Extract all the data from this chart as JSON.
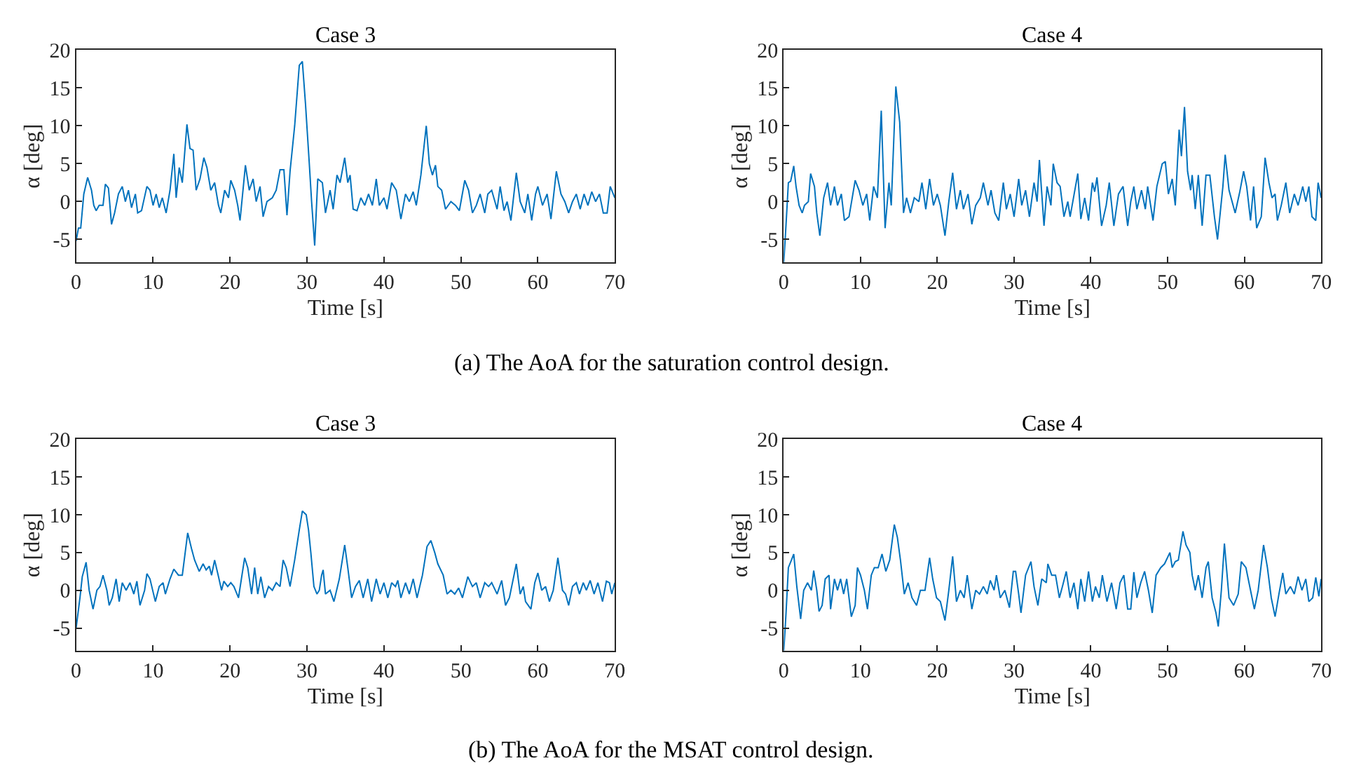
{
  "chart_data": [
    {
      "type": "line",
      "title": "Case 3",
      "xlabel": "Time [s]",
      "ylabel": "α [deg]",
      "xlim": [
        0,
        70
      ],
      "xticks": [
        0,
        10,
        20,
        30,
        40,
        50,
        60,
        70
      ],
      "ylim": [
        -8,
        20
      ],
      "yticks": [
        -5,
        0,
        5,
        10,
        15,
        20
      ],
      "annotations": [
        "(a) The AoA for the saturation control design."
      ],
      "series": [
        {
          "color": "#0072bd",
          "x": [
            0,
            0.3,
            0.6,
            1,
            1.5,
            2,
            2.3,
            2.6,
            3,
            3.5,
            3.8,
            4.2,
            4.6,
            5,
            5.5,
            6,
            6.4,
            6.8,
            7.2,
            7.7,
            8,
            8.5,
            9.2,
            9.6,
            10,
            10.4,
            10.8,
            11.2,
            11.7,
            12.2,
            12.7,
            13,
            13.4,
            13.8,
            14.4,
            14.8,
            15.2,
            15.6,
            16.1,
            16.6,
            17,
            17.5,
            18,
            18.5,
            18.8,
            19.3,
            19.8,
            20.1,
            20.6,
            21,
            21.3,
            22,
            22.5,
            23,
            23.4,
            23.9,
            24.3,
            24.8,
            25.5,
            26,
            26.5,
            27,
            27.4,
            27.8,
            28.4,
            29,
            29.4,
            29.8,
            30.3,
            30.6,
            31,
            31.4,
            32,
            32.4,
            33,
            33.4,
            33.9,
            34.3,
            34.9,
            35.3,
            35.6,
            36,
            36.5,
            37,
            37.5,
            38,
            38.5,
            38.8,
            39,
            39.4,
            40,
            40.4,
            41,
            41.6,
            42.2,
            42.8,
            43.3,
            43.8,
            44.2,
            44.8,
            45.5,
            45.9,
            46.3,
            46.7,
            47,
            47.5,
            48,
            48.7,
            49.3,
            49.8,
            50.5,
            51,
            51.5,
            52,
            52.5,
            53.1,
            53.5,
            54,
            54.7,
            55.1,
            55.6,
            56,
            56.5,
            57.2,
            57.7,
            58.3,
            58.7,
            59.2,
            59.7,
            60,
            60.6,
            61.2,
            61.7,
            62.4,
            63,
            63.5,
            64,
            64.5,
            65,
            65.5,
            66,
            66.5,
            67,
            67.5,
            68,
            68.5,
            69,
            69.4,
            70
          ],
          "values": [
            -5.2,
            -3.5,
            -3.5,
            1,
            3.2,
            1.5,
            -0.5,
            -1.2,
            -0.5,
            -0.5,
            2.3,
            1.8,
            -3,
            -1.5,
            1,
            2,
            0,
            1.5,
            -0.8,
            1,
            -1.5,
            -1.2,
            2,
            1.5,
            -0.5,
            1,
            -0.8,
            0.5,
            -1.5,
            1.5,
            6.3,
            0.5,
            4.5,
            2.5,
            10.2,
            7,
            6.8,
            1.5,
            3,
            5.8,
            4.5,
            1.5,
            2.5,
            -0.5,
            -1.5,
            1.5,
            0.5,
            2.8,
            1.5,
            -0.5,
            -2.5,
            4.8,
            1.5,
            3,
            0,
            2,
            -2,
            0,
            0.5,
            1.5,
            4.2,
            4.2,
            -1.8,
            4,
            10,
            18,
            18.5,
            13,
            5,
            0,
            -5.8,
            3,
            2.5,
            -1.5,
            1.5,
            -1,
            3.5,
            2.5,
            5.8,
            2.5,
            3.5,
            -1,
            -1.2,
            0.5,
            -0.5,
            1,
            -0.5,
            1.5,
            3,
            -0.5,
            0.5,
            -1,
            2.5,
            1.5,
            -2.3,
            1,
            0,
            1.3,
            -0.5,
            3.5,
            10,
            5,
            3.5,
            4.8,
            2,
            1.5,
            -1,
            0,
            -0.5,
            -1.2,
            2.8,
            1.5,
            -1.5,
            -0.5,
            1,
            -1.5,
            1,
            1.5,
            -1,
            2,
            -1.2,
            0,
            -2.5,
            3.8,
            0,
            -1.5,
            1,
            -2.5,
            1,
            2,
            -0.5,
            1,
            -2.3,
            4,
            1,
            0,
            -1.5,
            0,
            1,
            -1,
            1,
            -0.5,
            1.3,
            0,
            1,
            -1.5,
            -1.5,
            2,
            0.5
          ]
        }
      ]
    },
    {
      "type": "line",
      "title": "Case 4",
      "xlabel": "Time [s]",
      "ylabel": "α [deg]",
      "xlim": [
        0,
        70
      ],
      "xticks": [
        0,
        10,
        20,
        30,
        40,
        50,
        60,
        70
      ],
      "ylim": [
        -8,
        20
      ],
      "yticks": [
        -5,
        0,
        5,
        10,
        15,
        20
      ],
      "series": [
        {
          "color": "#0072bd",
          "x": [
            0,
            0.3,
            0.6,
            0.9,
            1.3,
            1.6,
            2,
            2.4,
            2.7,
            3.2,
            3.5,
            4,
            4.3,
            4.7,
            5.2,
            5.7,
            6.1,
            6.6,
            7,
            7.5,
            7.9,
            8.5,
            9.3,
            9.8,
            10.3,
            10.8,
            11.2,
            11.7,
            12.2,
            12.7,
            13.2,
            13.7,
            14,
            14.6,
            15.1,
            15.6,
            16,
            16.5,
            17,
            17.6,
            18,
            18.5,
            19,
            19.5,
            20,
            20.4,
            21,
            21.5,
            22,
            22.5,
            23,
            23.4,
            24,
            24.5,
            25,
            25.6,
            26,
            26.6,
            27,
            27.5,
            28,
            28.6,
            29,
            29.5,
            30,
            30.6,
            31,
            31.5,
            32,
            32.6,
            33,
            33.3,
            33.9,
            34.3,
            34.8,
            35.1,
            35.6,
            36,
            36.5,
            37,
            37.3,
            38.3,
            38.7,
            39.2,
            39.7,
            40.2,
            40.5,
            40.8,
            41.4,
            42,
            42.4,
            43,
            43.6,
            44.2,
            44.8,
            45.2,
            45.6,
            46,
            46.6,
            47.1,
            47.4,
            48.1,
            48.6,
            49.3,
            49.7,
            50.1,
            50.6,
            51,
            51.5,
            51.8,
            52.2,
            52.6,
            53,
            53.2,
            53.6,
            54,
            54.5,
            55,
            55.5,
            56.1,
            56.5,
            57.2,
            57.5,
            58,
            58.4,
            58.8,
            59.4,
            59.9,
            60.3,
            60.8,
            61.2,
            61.6,
            62.2,
            62.7,
            63.2,
            63.6,
            64,
            64.3,
            64.8,
            65.4,
            65.9,
            66.5,
            67,
            67.6,
            68,
            68.4,
            68.8,
            69.3,
            69.6,
            70
          ],
          "values": [
            -8,
            -3,
            2.5,
            2.7,
            4.7,
            2,
            -0.5,
            -1.5,
            -0.5,
            0,
            3.7,
            2,
            -1.5,
            -4.5,
            0.5,
            2.5,
            -0.5,
            2,
            -0.5,
            1,
            -2.5,
            -2,
            2.8,
            1.5,
            -0.5,
            1,
            -2.5,
            2,
            0.5,
            12,
            -3.5,
            2.5,
            -0.5,
            15.2,
            10.5,
            -1.5,
            0.5,
            -1.5,
            0.5,
            0,
            2.5,
            -1,
            3,
            -0.5,
            1,
            -0.5,
            -4.5,
            0,
            3.8,
            -1,
            1.5,
            -1,
            1,
            -3,
            -0.5,
            0.5,
            2.5,
            -0.5,
            1.5,
            -1.5,
            -2.5,
            2.5,
            -1,
            1,
            -2,
            3,
            -0.5,
            1.5,
            -2,
            2.5,
            0,
            5.5,
            -3.2,
            2,
            -0.5,
            5,
            2.5,
            2,
            -2,
            0,
            -2,
            3.7,
            -2.3,
            0.5,
            -2.5,
            2.5,
            1.3,
            3.2,
            -3.2,
            -0.5,
            2.5,
            -3.2,
            1,
            2,
            -3.2,
            0,
            2,
            -1,
            1.5,
            -1,
            2,
            -2.5,
            2,
            5,
            5.3,
            1,
            3,
            -0.5,
            9.5,
            6,
            12.5,
            4,
            1.5,
            3.5,
            -1,
            3.5,
            -3.2,
            3.5,
            3.5,
            -2,
            -5,
            2,
            6.2,
            1.5,
            0,
            -1.5,
            1.3,
            4,
            2,
            -2.5,
            2,
            -3.5,
            -2,
            5.8,
            2.5,
            0.5,
            1,
            -2.5,
            -0.5,
            2.5,
            -1.5,
            1,
            -0.5,
            2,
            0,
            2,
            -2,
            -2.5,
            2.5,
            0.5
          ]
        }
      ]
    },
    {
      "type": "line",
      "title": "Case 3",
      "xlabel": "Time [s]",
      "ylabel": "α [deg]",
      "xlim": [
        0,
        70
      ],
      "xticks": [
        0,
        10,
        20,
        30,
        40,
        50,
        60,
        70
      ],
      "ylim": [
        -8,
        20
      ],
      "yticks": [
        -5,
        0,
        5,
        10,
        15,
        20
      ],
      "annotations": [
        "(b) The AoA for the MSAT control design."
      ],
      "series": [
        {
          "color": "#0072bd",
          "x": [
            0,
            0.5,
            0.8,
            1.3,
            1.7,
            2.2,
            2.7,
            3.1,
            3.5,
            4,
            4.3,
            4.7,
            5.2,
            5.6,
            6,
            6.5,
            7,
            7.5,
            7.9,
            8.3,
            8.9,
            9.2,
            9.6,
            10.3,
            10.8,
            11.3,
            11.6,
            12.2,
            12.7,
            13.3,
            13.8,
            14.5,
            15,
            15.4,
            16,
            16.5,
            16.9,
            17.3,
            17.6,
            18,
            18.5,
            18.9,
            19.2,
            19.7,
            20.1,
            20.5,
            21.1,
            21.9,
            22.3,
            22.8,
            23.2,
            23.6,
            24,
            24.5,
            25,
            25.5,
            26,
            26.5,
            26.9,
            27.3,
            27.8,
            28.4,
            29,
            29.4,
            29.9,
            30.2,
            30.5,
            30.9,
            31.3,
            31.6,
            31.9,
            32.1,
            32.4,
            33,
            33.5,
            34.2,
            34.9,
            35.3,
            35.8,
            36.3,
            36.8,
            37.3,
            37.9,
            38.4,
            39,
            39.5,
            40,
            40.5,
            41,
            41.5,
            41.8,
            42.2,
            42.8,
            43.3,
            43.8,
            44.3,
            45,
            45.6,
            46.1,
            46.6,
            47,
            47.7,
            48.2,
            48.7,
            49.2,
            49.7,
            50.2,
            50.9,
            51.5,
            52,
            52.5,
            53.1,
            53.6,
            54,
            54.7,
            55.3,
            55.8,
            56.3,
            57.2,
            57.7,
            58.1,
            58.4,
            59.1,
            59.6,
            60,
            60.5,
            61,
            61.5,
            62,
            62.6,
            63.2,
            63.6,
            64,
            64.5,
            65,
            65.4,
            65.9,
            66.3,
            66.8,
            67.3,
            67.8,
            68.4,
            68.9,
            69.3,
            69.6,
            70
          ],
          "values": [
            -5,
            -1,
            1.8,
            3.7,
            0,
            -2.5,
            0,
            0.5,
            2,
            0,
            -2,
            -1,
            1.5,
            -1.5,
            1,
            0,
            1,
            -0.5,
            1.2,
            -2,
            0,
            2.2,
            1.5,
            -1.5,
            0.5,
            1,
            -0.5,
            1.5,
            2.8,
            2,
            2,
            7.6,
            5.5,
            4,
            2.5,
            3.5,
            2.7,
            3.2,
            2,
            4,
            1.8,
            0,
            1.2,
            0.5,
            1,
            0.5,
            -1,
            4.3,
            3,
            -0.5,
            3,
            -0.5,
            1.8,
            -1,
            0.5,
            0,
            1,
            0.5,
            4,
            3,
            0.5,
            4,
            8,
            10.5,
            10,
            8,
            5,
            0.5,
            -0.5,
            0,
            2,
            2.7,
            -0.5,
            0,
            -1.5,
            1.5,
            6,
            3,
            -1,
            0.5,
            1.3,
            -1,
            1.5,
            -1.5,
            1.5,
            -0.5,
            1,
            -1,
            1,
            0.5,
            1.3,
            -1,
            1,
            -0.5,
            1.5,
            -1,
            2,
            5.8,
            6.6,
            5,
            3.5,
            2,
            -0.5,
            0,
            -0.5,
            0.3,
            -1,
            1.8,
            0.5,
            1,
            -1,
            1,
            0.5,
            1,
            -0.5,
            1.3,
            -2,
            -1,
            3.5,
            -0.5,
            0.5,
            -1.5,
            -2.5,
            1,
            2.3,
            0,
            0.5,
            -1.5,
            0,
            4.3,
            0,
            -0.5,
            -2,
            0.5,
            1,
            -0.5,
            1,
            0,
            1.3,
            -0.5,
            1,
            -1.5,
            1.2,
            1,
            -0.5,
            1
          ]
        }
      ]
    },
    {
      "type": "line",
      "title": "Case 4",
      "xlabel": "Time [s]",
      "ylabel": "α [deg]",
      "xlim": [
        0,
        70
      ],
      "xticks": [
        0,
        10,
        20,
        30,
        40,
        50,
        60,
        70
      ],
      "ylim": [
        -8,
        20
      ],
      "yticks": [
        -5,
        0,
        5,
        10,
        15,
        20
      ],
      "series": [
        {
          "color": "#0072bd",
          "x": [
            0,
            0.3,
            0.6,
            1,
            1.3,
            1.7,
            2.2,
            2.6,
            3.1,
            3.6,
            3.9,
            4.3,
            4.6,
            5,
            5.4,
            5.9,
            6.1,
            6.6,
            7,
            7.4,
            7.8,
            8.2,
            8.8,
            9.3,
            9.6,
            10,
            10.5,
            10.9,
            11.4,
            11.8,
            12.3,
            12.8,
            13.3,
            13.8,
            14.4,
            14.8,
            15.2,
            15.7,
            16.2,
            16.7,
            17.3,
            17.8,
            18.4,
            19,
            19.4,
            19.9,
            20.4,
            21,
            21.5,
            22,
            22.5,
            23,
            23.5,
            23.9,
            24.5,
            25,
            25.5,
            26,
            26.5,
            26.9,
            27.4,
            27.7,
            28.2,
            28.8,
            29.4,
            29.9,
            30.2,
            30.6,
            30.9,
            31.5,
            32.2,
            32.6,
            33.1,
            33.6,
            34.2,
            34.4,
            34.9,
            35.4,
            35.9,
            36.3,
            36.8,
            37.3,
            37.8,
            38.3,
            38.7,
            39.2,
            39.7,
            40.2,
            40.6,
            41.1,
            41.5,
            42.1,
            42.7,
            43.3,
            43.8,
            44.3,
            44.8,
            45.2,
            45.6,
            46,
            46.5,
            47,
            47.5,
            48,
            48.5,
            49.1,
            49.6,
            50.3,
            50.6,
            51,
            51.4,
            52,
            52.4,
            52.9,
            53.2,
            53.6,
            54,
            54.5,
            55,
            55.3,
            55.8,
            56.3,
            56.6,
            57,
            57.4,
            58,
            58.6,
            59.2,
            59.6,
            60.2,
            60.8,
            61.3,
            61.8,
            62.5,
            63,
            63.5,
            64,
            64.5,
            65,
            65.4,
            66,
            66.5,
            67,
            67.5,
            68,
            68.4,
            68.9,
            69.3,
            69.7,
            70
          ],
          "values": [
            -8,
            -3,
            3,
            4,
            4.8,
            0.5,
            -3.8,
            0,
            1,
            0,
            2.6,
            0,
            -2.8,
            -2,
            1.5,
            2,
            -2.5,
            1.5,
            0,
            1.5,
            -0.5,
            1.5,
            -3.5,
            -2,
            3,
            2,
            0,
            -2.5,
            2,
            3,
            3,
            4.8,
            2.5,
            4,
            8.7,
            7,
            4,
            -0.5,
            1,
            -1,
            -2,
            0,
            0,
            4.3,
            1.5,
            -1,
            -1.5,
            -4,
            0,
            4.5,
            -1.5,
            0,
            -1,
            2,
            -2.5,
            0,
            -0.5,
            0.5,
            -0.5,
            1.3,
            0,
            2,
            -1,
            0,
            -2.3,
            2.5,
            2.5,
            -0.5,
            -3,
            2,
            3.8,
            0.5,
            -2,
            1.5,
            1,
            3.5,
            2,
            2,
            -1,
            0.5,
            2.5,
            -1,
            1,
            -2.5,
            1.5,
            -1.5,
            2.5,
            -1.5,
            0.5,
            -1,
            2,
            -1.5,
            1,
            -2.5,
            1,
            2,
            -2.5,
            -2.5,
            2.4,
            -1,
            1,
            2.5,
            0,
            -3,
            2,
            3,
            3.5,
            5,
            3,
            3.8,
            4,
            7.8,
            6,
            5,
            2,
            0,
            2,
            -1,
            3,
            3.8,
            -1,
            -3,
            -4.8,
            0,
            6.2,
            -1,
            -2,
            -0.5,
            3.8,
            3,
            0,
            -2.5,
            0,
            6,
            3,
            -1,
            -3.5,
            -0.5,
            2.3,
            -0.5,
            0.5,
            -0.5,
            1.8,
            0,
            1.5,
            -1.5,
            -1,
            1.7,
            -0.8,
            1.5
          ]
        }
      ]
    }
  ]
}
